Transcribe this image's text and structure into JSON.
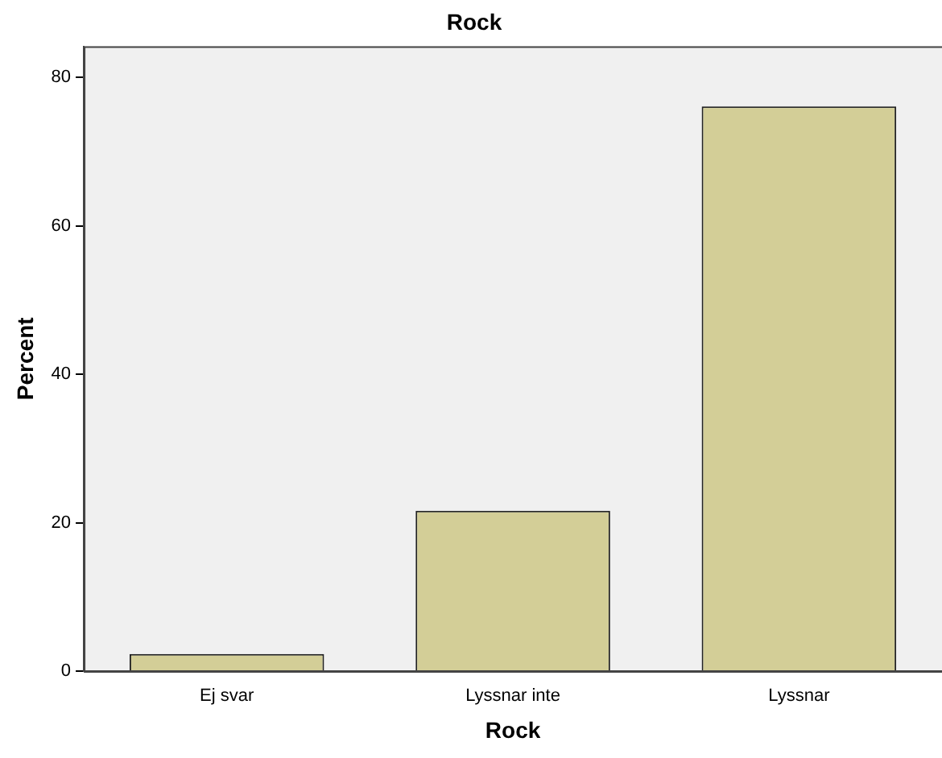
{
  "chart_data": {
    "type": "bar",
    "title": "Rock",
    "xlabel": "Rock",
    "ylabel": "Percent",
    "categories": [
      "Ej svar",
      "Lyssnar inte",
      "Lyssnar"
    ],
    "values": [
      2.3,
      21.6,
      76.1
    ],
    "color": "#d3ce97",
    "ylim": [
      0,
      84.2
    ],
    "yticks": [
      0,
      20,
      40,
      60,
      80
    ],
    "grid": false,
    "legend": false
  }
}
